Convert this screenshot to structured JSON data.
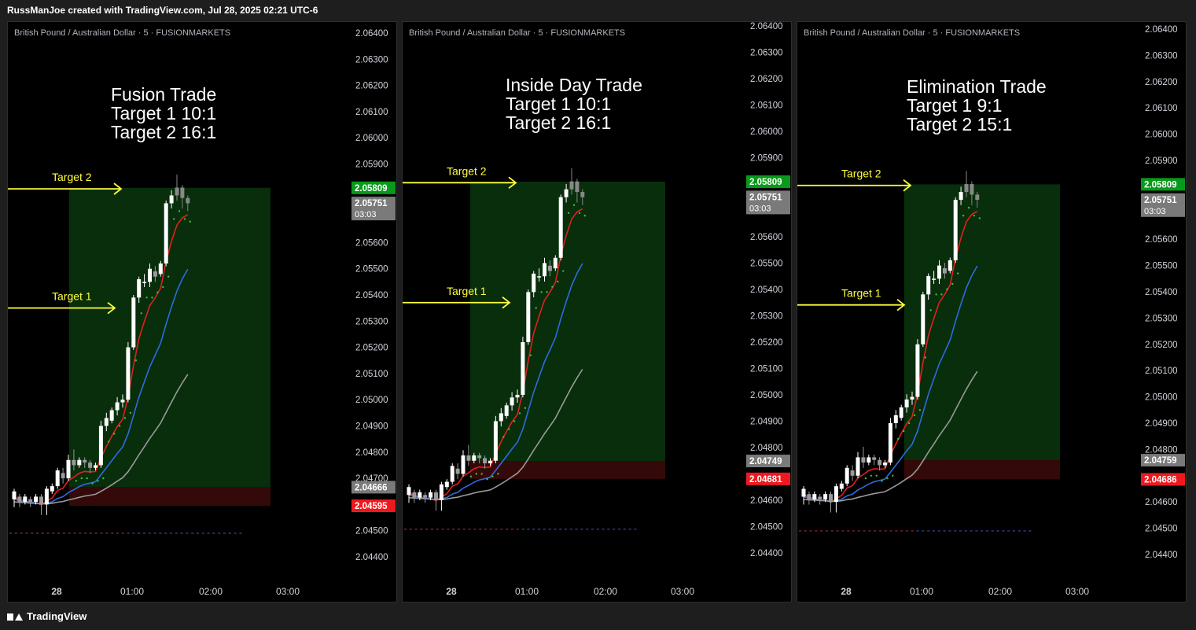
{
  "header": {
    "attribution": "RussManJoe created with TradingView.com, Jul 28, 2025 02:21 UTC-6"
  },
  "footer": {
    "brand": "TradingView"
  },
  "colors": {
    "bg": "#000000",
    "green_zone": "#0b3d10",
    "red_zone": "#3a0a0a",
    "ema_red": "#e0211d",
    "ema_blue": "#2f6be0",
    "ema_gray": "#9a9a9a",
    "arrow": "#ffff3d",
    "label_green": "#089a1a",
    "label_red": "#f0181f",
    "label_gray": "#7a7a7a"
  },
  "chart_data": [
    {
      "type": "candlestick",
      "symbol_title": "British Pound / Australian Dollar · 5 · FUSIONMARKETS",
      "annotation_lines": [
        "Fusion Trade",
        "Target 1 10:1",
        "Target 2 16:1"
      ],
      "y_ticks": [
        "2.06400",
        "2.06300",
        "2.06200",
        "2.06100",
        "2.06000",
        "2.05900",
        "2.05600",
        "2.05500",
        "2.05400",
        "2.05300",
        "2.05200",
        "2.05100",
        "2.05000",
        "2.04900",
        "2.04800",
        "2.04700",
        "2.04500",
        "2.04400"
      ],
      "x_ticks": [
        "28",
        "01:00",
        "02:00",
        "03:00"
      ],
      "targets": [
        {
          "label": "Target 2",
          "price": 2.05805
        },
        {
          "label": "Target 1",
          "price": 2.0535
        }
      ],
      "zones": {
        "green": [
          2.04666,
          2.05809
        ],
        "red": [
          2.04595,
          2.04666
        ]
      },
      "price_labels": [
        {
          "price": 2.05809,
          "text": "2.05809",
          "color": "green"
        },
        {
          "price": 2.05751,
          "text": "2.05751",
          "text2": "03:03",
          "color": "gray"
        },
        {
          "price": 2.04666,
          "text": "2.04666",
          "color": "gray"
        },
        {
          "price": 2.04595,
          "text": "2.04595",
          "color": "red"
        }
      ]
    },
    {
      "type": "candlestick",
      "symbol_title": "British Pound / Australian Dollar · 5 · FUSIONMARKETS",
      "annotation_lines": [
        "Inside Day Trade",
        "Target 1 10:1",
        "Target 2 16:1"
      ],
      "y_ticks": [
        "2.06400",
        "2.06300",
        "2.06200",
        "2.06100",
        "2.06000",
        "2.05900",
        "2.05600",
        "2.05500",
        "2.05400",
        "2.05300",
        "2.05200",
        "2.05100",
        "2.05000",
        "2.04900",
        "2.04800",
        "2.04600",
        "2.04500",
        "2.04400"
      ],
      "x_ticks": [
        "28",
        "01:00",
        "02:00",
        "03:00"
      ],
      "targets": [
        {
          "label": "Target 2",
          "price": 2.05805
        },
        {
          "label": "Target 1",
          "price": 2.0535
        }
      ],
      "zones": {
        "green": [
          2.04749,
          2.05809
        ],
        "red": [
          2.04681,
          2.04749
        ]
      },
      "price_labels": [
        {
          "price": 2.05809,
          "text": "2.05809",
          "color": "green"
        },
        {
          "price": 2.05751,
          "text": "2.05751",
          "text2": "03:03",
          "color": "gray"
        },
        {
          "price": 2.04749,
          "text": "2.04749",
          "color": "gray"
        },
        {
          "price": 2.04681,
          "text": "2.04681",
          "color": "red"
        }
      ]
    },
    {
      "type": "candlestick",
      "symbol_title": "British Pound / Australian Dollar · 5 · FUSIONMARKETS",
      "annotation_lines": [
        "Elimination Trade",
        "Target 1 9:1",
        "Target 2 15:1"
      ],
      "y_ticks": [
        "2.06400",
        "2.06300",
        "2.06200",
        "2.06100",
        "2.06000",
        "2.05900",
        "2.05600",
        "2.05500",
        "2.05400",
        "2.05300",
        "2.05200",
        "2.05100",
        "2.05000",
        "2.04900",
        "2.04800",
        "2.04600",
        "2.04500",
        "2.04400"
      ],
      "x_ticks": [
        "28",
        "01:00",
        "02:00",
        "03:00"
      ],
      "targets": [
        {
          "label": "Target 2",
          "price": 2.05805
        },
        {
          "label": "Target 1",
          "price": 2.0535
        }
      ],
      "zones": {
        "green": [
          2.04759,
          2.05809
        ],
        "red": [
          2.04686,
          2.04759
        ]
      },
      "price_labels": [
        {
          "price": 2.05809,
          "text": "2.05809",
          "color": "green"
        },
        {
          "price": 2.05751,
          "text": "2.05751",
          "text2": "03:03",
          "color": "gray"
        },
        {
          "price": 2.04759,
          "text": "2.04759",
          "color": "gray"
        },
        {
          "price": 2.04686,
          "text": "2.04686",
          "color": "red"
        }
      ]
    }
  ]
}
